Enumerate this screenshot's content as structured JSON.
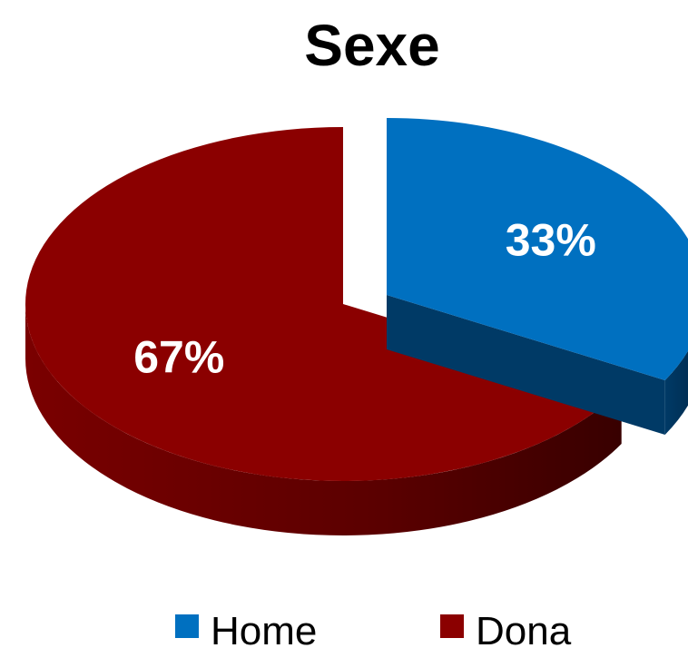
{
  "chart_data": {
    "type": "pie",
    "title": "Sexe",
    "categories": [
      "Home",
      "Dona"
    ],
    "values": [
      33,
      67
    ],
    "data_labels": [
      "33%",
      "67%"
    ],
    "colors": [
      "#0070C0",
      "#8B0000"
    ],
    "side_colors": [
      "#003A66",
      "#5A0000"
    ],
    "style": "3d-exploded",
    "legend_position": "bottom"
  }
}
